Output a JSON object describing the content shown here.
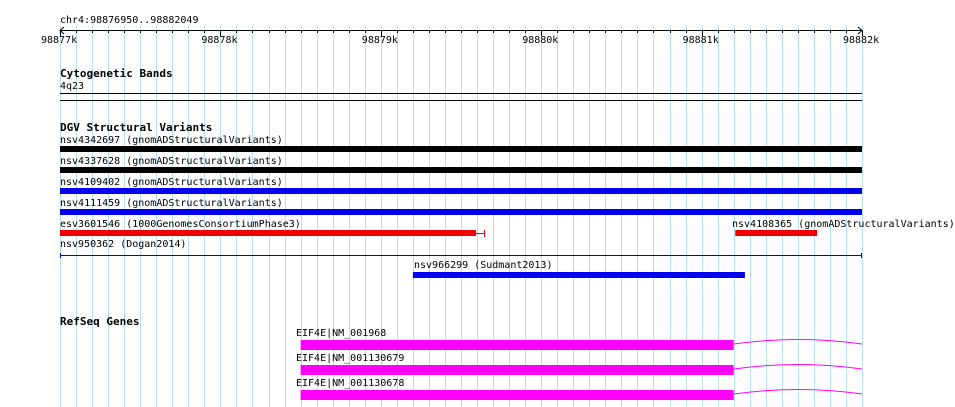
{
  "region": {
    "label": "chr4:98876950..98882049",
    "start": 98876950,
    "end": 98882049
  },
  "ruler": {
    "ticks": [
      {
        "label": "98877k",
        "pos": 98877000
      },
      {
        "label": "98878k",
        "pos": 98878000
      },
      {
        "label": "98879k",
        "pos": 98879000
      },
      {
        "label": "98880k",
        "pos": 98880000
      },
      {
        "label": "98881k",
        "pos": 98881000
      },
      {
        "label": "98882k",
        "pos": 98882000
      }
    ]
  },
  "tracks": {
    "cytoband": {
      "title": "Cytogenetic Bands",
      "band_label": "4q23"
    },
    "dgv": {
      "title": "DGV Structural Variants",
      "features": [
        {
          "label": "nsv4342697 (gnomADStructuralVariants)",
          "color": "#000000",
          "start": 98876950,
          "end": 98882049
        },
        {
          "label": "nsv4337628 (gnomADStructuralVariants)",
          "color": "#000000",
          "start": 98876950,
          "end": 98882049
        },
        {
          "label": "nsv4109402 (gnomADStructuralVariants)",
          "color": "#0000ee",
          "start": 98876950,
          "end": 98882049
        },
        {
          "label": "nsv4111459 (gnomADStructuralVariants)",
          "color": "#0000ee",
          "start": 98876950,
          "end": 98882049
        },
        {
          "label": "esv3601546 (1000GenomesConsortiumPhase3)",
          "color": "#ee0000",
          "start": 98876950,
          "end": 98879650
        },
        {
          "label": "nsv4108365 (gnomADStructuralVariants)",
          "color": "#ee0000",
          "start": 98881210,
          "end": 98881720
        },
        {
          "label": "nsv950362 (Dogan2014)",
          "color": "#0000ee",
          "start": 98876950,
          "end": 98882049
        },
        {
          "label": "nsv966299 (Sudmant2013)",
          "color": "#0000ee",
          "start": 98879200,
          "end": 98881270
        }
      ]
    },
    "refseq": {
      "title": "RefSeq Genes",
      "color": "#ff00ff",
      "features": [
        {
          "label": "EIF4E|NM_001968",
          "start": 98878500,
          "end": 98881200
        },
        {
          "label": "EIF4E|NM_001130679",
          "start": 98878500,
          "end": 98881200
        },
        {
          "label": "EIF4E|NM_001130678",
          "start": 98878500,
          "end": 98881200
        }
      ]
    }
  }
}
